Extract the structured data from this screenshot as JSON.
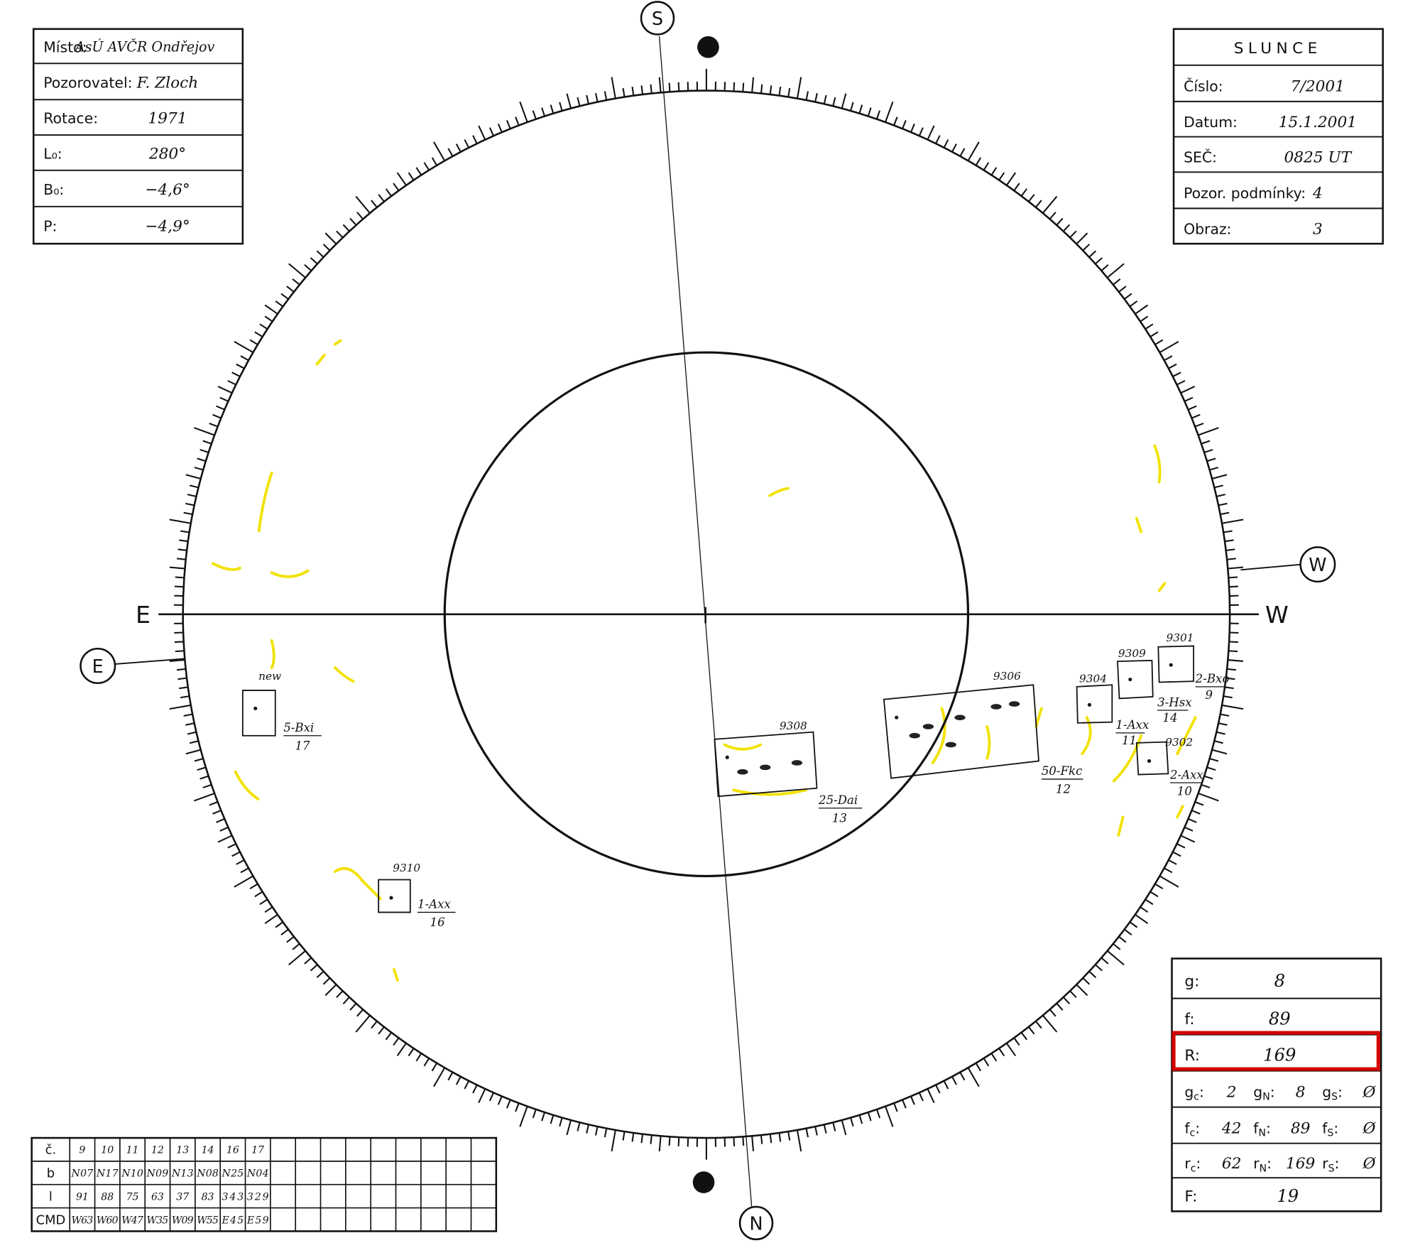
{
  "observation": {
    "rows": [
      {
        "label": "Místo:",
        "value": "AsÚ AVČR Ondřejov"
      },
      {
        "label": "Pozorovatel:",
        "value": "F. Zloch"
      },
      {
        "label": "Rotace:",
        "value": "1971"
      },
      {
        "label": "L₀:",
        "value": "280°"
      },
      {
        "label": "B₀:",
        "value": "−4,6°"
      },
      {
        "label": "P:",
        "value": "−4,9°"
      }
    ]
  },
  "sun_info": {
    "title": "SLUNCE",
    "rows": [
      {
        "label": "Číslo:",
        "value": "7/2001"
      },
      {
        "label": "Datum:",
        "value": "15.1.2001"
      },
      {
        "label": "SEČ:",
        "value": "0825 UT"
      },
      {
        "label": "Pozor. podmínky:",
        "value": "4"
      },
      {
        "label": "Obraz:",
        "value": "3"
      }
    ]
  },
  "compass": {
    "south": "S",
    "north": "N",
    "east": "E",
    "west": "W"
  },
  "groups": [
    {
      "number": "new",
      "class": "5-Bxi",
      "index": "17"
    },
    {
      "number": "9310",
      "class": "1-Axx",
      "index": "16"
    },
    {
      "number": "9308",
      "class": "25-Dai",
      "index": "13"
    },
    {
      "number": "9306",
      "class": "50-Fkc",
      "index": "12"
    },
    {
      "number": "9304",
      "class": "1-Axx",
      "index": "11"
    },
    {
      "number": "9309",
      "class": "3-Hsx",
      "index": "14"
    },
    {
      "number": "9301",
      "class": "2-Bxo",
      "index": "9"
    },
    {
      "number": "9302",
      "class": "2-Axx",
      "index": "10"
    }
  ],
  "summary": {
    "separator": ":",
    "rows": [
      {
        "label": "g:",
        "value": "8"
      },
      {
        "label": "f:",
        "value": "89"
      },
      {
        "label": "R:",
        "value": "169"
      }
    ],
    "split_rows": [
      [
        {
          "main": "g",
          "sub": "c",
          "value": "2"
        },
        {
          "main": "g",
          "sub": "N",
          "value": "8"
        },
        {
          "main": "g",
          "sub": "S",
          "value": "Ø"
        }
      ],
      [
        {
          "main": "f",
          "sub": "c",
          "value": "42"
        },
        {
          "main": "f",
          "sub": "N",
          "value": "89"
        },
        {
          "main": "f",
          "sub": "S",
          "value": "Ø"
        }
      ],
      [
        {
          "main": "r",
          "sub": "c",
          "value": "62"
        },
        {
          "main": "r",
          "sub": "N",
          "value": "169"
        },
        {
          "main": "r",
          "sub": "S",
          "value": "Ø"
        }
      ]
    ],
    "final": {
      "label": "F:",
      "value": "19"
    }
  },
  "cmd_table": {
    "rows": [
      {
        "label": "č.",
        "cells": [
          "9",
          "10",
          "11",
          "12",
          "13",
          "14",
          "16",
          "17"
        ]
      },
      {
        "label": "b",
        "cells": [
          "N07",
          "N17",
          "N10",
          "N09",
          "N13",
          "N08",
          "N25",
          "N04"
        ]
      },
      {
        "label": "l",
        "cells": [
          "91",
          "88",
          "75",
          "63",
          "37",
          "83",
          "343",
          "329"
        ]
      },
      {
        "label": "CMD",
        "cells": [
          "W63",
          "W60",
          "W47",
          "W35",
          "W09",
          "W55",
          "E45",
          "E59"
        ]
      }
    ]
  }
}
